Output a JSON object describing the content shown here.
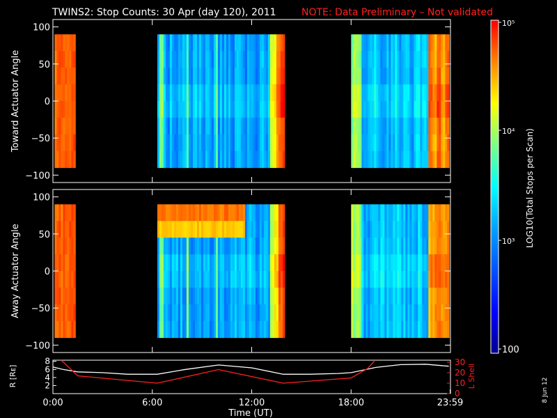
{
  "header": {
    "title": "TWINS2: Stop Counts: 30 Apr (day 120), 2011",
    "note": "NOTE: Data Preliminary – Not validated",
    "note_color": "#ff2020"
  },
  "footer": {
    "date_stamp": "8 Jun 12"
  },
  "chart_data": [
    {
      "type": "heatmap",
      "panel": "toward",
      "ylabel": "Toward Actuator Angle",
      "ylim": [
        -110,
        110
      ],
      "yticks": [
        "100",
        "50",
        "0",
        "−50",
        "−100"
      ],
      "xlim_hours": [
        0,
        24
      ],
      "data_intervals_hours": [
        [
          0.1,
          1.35
        ],
        [
          6.3,
          13.9
        ],
        [
          18.0,
          23.9
        ]
      ],
      "angle_range": [
        -90,
        90
      ]
    },
    {
      "type": "heatmap",
      "panel": "away",
      "ylabel": "Away Actuator Angle",
      "ylim": [
        -110,
        110
      ],
      "yticks": [
        "100",
        "50",
        "0",
        "−50",
        "−100"
      ],
      "xlim_hours": [
        0,
        24
      ],
      "data_intervals_hours": [
        [
          0.1,
          1.35
        ],
        [
          6.3,
          13.9
        ],
        [
          18.0,
          23.9
        ]
      ],
      "angle_range": [
        -90,
        90
      ],
      "feature": "enhanced counts near +75 deg from 06:30 to 11:30"
    },
    {
      "type": "line",
      "panel": "orbit",
      "ylabel_left": "R [Rᴇ]",
      "ylabel_right": "L Shell",
      "left_yticks": [
        "8",
        "6",
        "4",
        "2"
      ],
      "right_yticks": [
        "30",
        "20",
        "10",
        "0"
      ],
      "xlabel": "Time (UT)",
      "xticks": [
        "0:00",
        "6:00",
        "12:00",
        "18:00",
        "23:59"
      ],
      "series": [
        {
          "axis": "left",
          "color": "#ffffff",
          "x": [
            0,
            0.6,
            1.5,
            3,
            4.5,
            6.3,
            8,
            10,
            12,
            13.9,
            15.5,
            17.2,
            18,
            19.5,
            21,
            22.5,
            23.9
          ],
          "y": [
            6.6,
            6.0,
            5.4,
            5.2,
            4.8,
            4.8,
            6.0,
            7.1,
            6.4,
            4.8,
            4.8,
            5.0,
            5.2,
            6.5,
            7.2,
            7.3,
            6.8
          ]
        },
        {
          "axis": "right",
          "color": "#ff2020",
          "x": [
            0.5,
            1.5,
            6.3,
            10,
            13.9,
            18,
            19.0,
            19.4
          ],
          "y": [
            32,
            17,
            10,
            23,
            10,
            15,
            24,
            31
          ]
        }
      ]
    }
  ],
  "colorbar": {
    "label": "LOG10(Total Stops per Scan)",
    "ticks": [
      "10⁵",
      "10⁴",
      "10³",
      "100"
    ]
  }
}
